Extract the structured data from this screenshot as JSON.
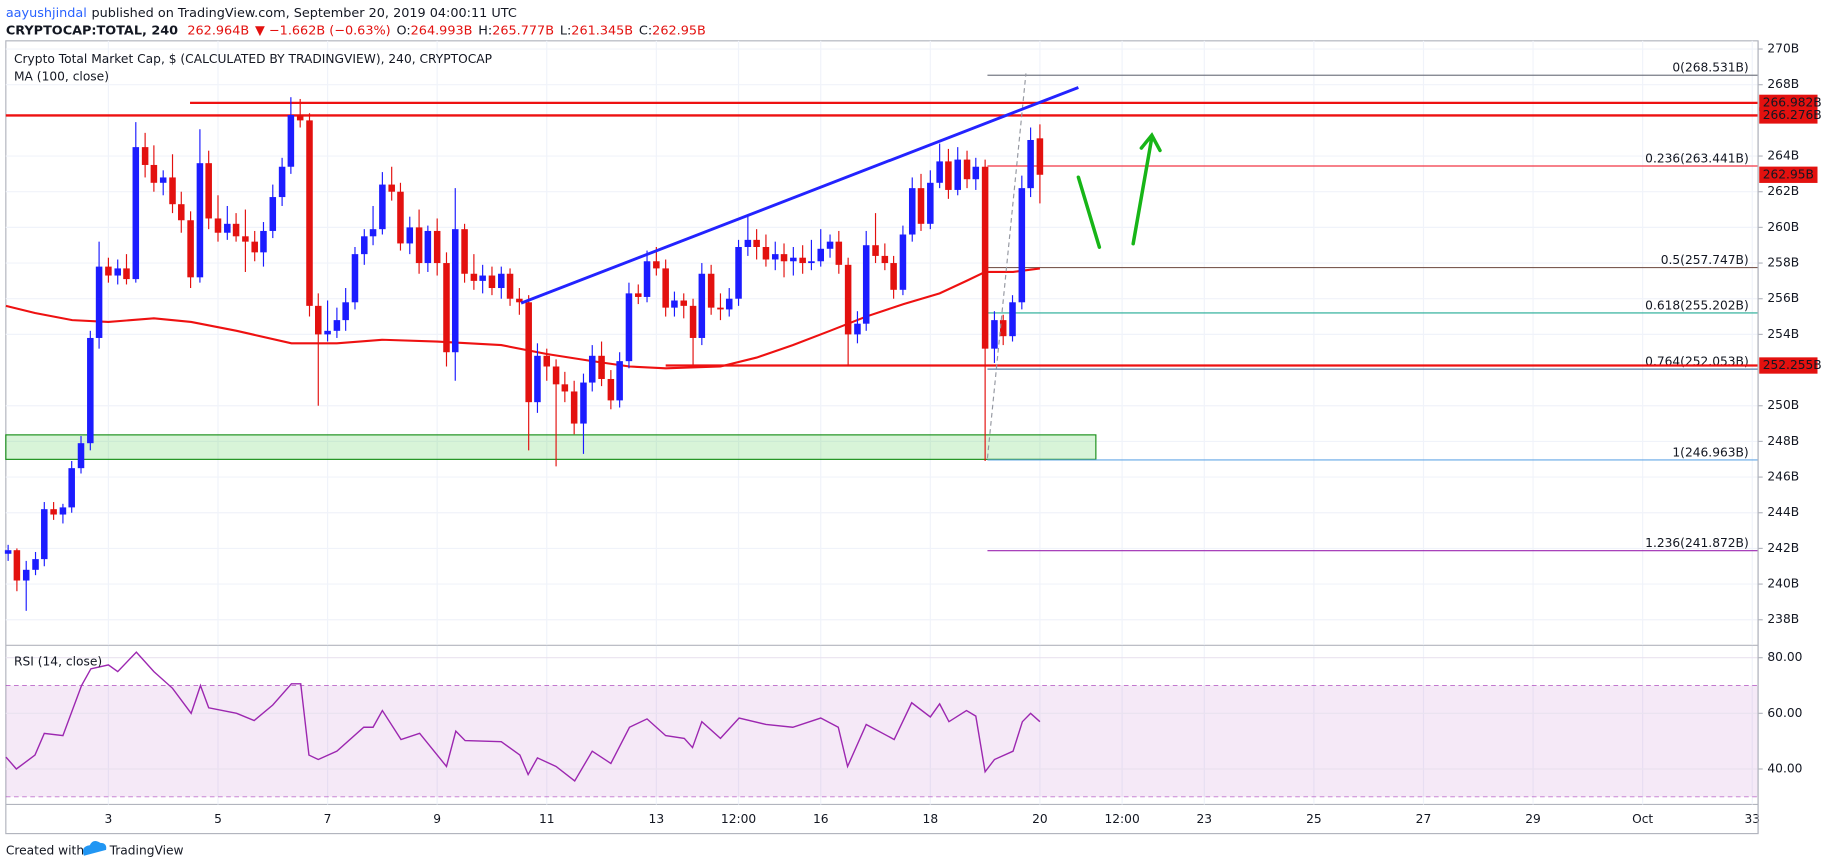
{
  "header": {
    "author": "aayushjindal",
    "published": "published on TradingView.com, September 20, 2019 04:00:11 UTC",
    "symbol": "CRYPTOCAP:TOTAL, 240",
    "last": "262.964B",
    "change": "▼ −1.662B (−0.63%)",
    "ohlc": [
      {
        "key": "O:",
        "value": "264.993B"
      },
      {
        "key": "H:",
        "value": "265.777B"
      },
      {
        "key": "L:",
        "value": "261.345B"
      },
      {
        "key": "C:",
        "value": "262.95B"
      }
    ]
  },
  "footer": {
    "created": "Created with",
    "brand": "TradingView"
  },
  "chart_data": {
    "type": "candlestick",
    "title": "Crypto Total Market Cap, $ (CALCULATED BY TRADINGVIEW), 240, CRYPTOCAP",
    "up_color": "#1c1cff",
    "down_color": "#e3110f",
    "x": [
      1.17,
      1.33,
      1.5,
      1.67,
      1.83,
      2,
      2.17,
      2.33,
      2.5,
      2.67,
      2.83,
      3,
      3.17,
      3.33,
      3.5,
      3.67,
      3.83,
      4,
      4.17,
      4.33,
      4.5,
      4.67,
      4.83,
      5,
      5.17,
      5.33,
      5.5,
      5.67,
      5.83,
      6,
      6.17,
      6.33,
      6.5,
      6.67,
      6.83,
      7,
      7.17,
      7.33,
      7.5,
      7.67,
      7.83,
      8,
      8.17,
      8.33,
      8.5,
      8.67,
      8.83,
      9,
      9.17,
      9.33,
      9.5,
      9.67,
      9.83,
      10,
      10.17,
      10.33,
      10.5,
      10.67,
      10.83,
      11,
      11.17,
      11.33,
      11.5,
      11.67,
      11.83,
      12,
      12.17,
      12.33,
      12.5,
      12.67,
      12.83,
      13,
      13.17,
      13.33,
      13.5,
      13.67,
      13.83,
      14,
      14.17,
      14.33,
      14.5,
      14.67,
      14.83,
      15,
      15.17,
      15.33,
      15.5,
      15.67,
      15.83,
      16,
      16.17,
      16.33,
      16.5,
      16.67,
      16.83,
      17,
      17.17,
      17.33,
      17.5,
      17.67,
      17.83,
      18,
      18.17,
      18.33,
      18.5,
      18.67,
      18.83,
      19,
      19.17,
      19.33,
      19.5,
      19.67,
      19.83,
      20
    ],
    "ohlc": [
      [
        241.7,
        242.2,
        241.3,
        241.9
      ],
      [
        241.9,
        242.0,
        239.6,
        240.2
      ],
      [
        240.2,
        241.3,
        238.5,
        240.8
      ],
      [
        240.8,
        241.8,
        240.5,
        241.4
      ],
      [
        241.4,
        244.6,
        241.0,
        244.2
      ],
      [
        244.2,
        244.6,
        243.6,
        243.9
      ],
      [
        243.9,
        244.5,
        243.4,
        244.3
      ],
      [
        244.3,
        246.9,
        244.0,
        246.5
      ],
      [
        246.5,
        248.3,
        246.2,
        247.9
      ],
      [
        247.9,
        254.2,
        247.5,
        253.8
      ],
      [
        253.8,
        259.2,
        253.2,
        257.8
      ],
      [
        257.8,
        258.3,
        256.9,
        257.3
      ],
      [
        257.3,
        258.2,
        256.8,
        257.7
      ],
      [
        257.7,
        258.5,
        256.8,
        257.1
      ],
      [
        257.1,
        265.9,
        256.9,
        264.5
      ],
      [
        264.5,
        265.3,
        262.8,
        263.5
      ],
      [
        263.5,
        264.6,
        262.0,
        262.5
      ],
      [
        262.5,
        263.2,
        261.8,
        262.8
      ],
      [
        262.8,
        264.1,
        260.8,
        261.3
      ],
      [
        261.3,
        262.0,
        259.7,
        260.4
      ],
      [
        260.4,
        260.9,
        256.6,
        257.2
      ],
      [
        257.2,
        265.5,
        256.9,
        263.6
      ],
      [
        263.6,
        264.3,
        259.9,
        260.5
      ],
      [
        260.5,
        261.8,
        259.2,
        259.7
      ],
      [
        259.7,
        261.2,
        259.3,
        260.2
      ],
      [
        260.2,
        260.8,
        259.2,
        259.5
      ],
      [
        259.5,
        261.0,
        257.5,
        259.2
      ],
      [
        259.2,
        259.8,
        258.1,
        258.6
      ],
      [
        258.6,
        260.3,
        257.8,
        259.8
      ],
      [
        259.8,
        262.4,
        259.4,
        261.7
      ],
      [
        261.7,
        263.9,
        261.2,
        263.4
      ],
      [
        263.4,
        267.3,
        263.0,
        266.3
      ],
      [
        266.3,
        267.2,
        265.6,
        266.0
      ],
      [
        266.0,
        266.4,
        255.0,
        255.6
      ],
      [
        255.6,
        256.3,
        250.0,
        254.0
      ],
      [
        254.0,
        255.9,
        253.6,
        254.2
      ],
      [
        254.2,
        255.5,
        253.8,
        254.8
      ],
      [
        254.8,
        256.6,
        254.2,
        255.8
      ],
      [
        255.8,
        258.9,
        255.4,
        258.5
      ],
      [
        258.5,
        259.9,
        257.9,
        259.5
      ],
      [
        259.5,
        261.2,
        259.0,
        259.9
      ],
      [
        259.9,
        263.1,
        259.6,
        262.4
      ],
      [
        262.4,
        263.4,
        261.5,
        262.0
      ],
      [
        262.0,
        262.5,
        258.7,
        259.1
      ],
      [
        259.1,
        260.6,
        258.5,
        260.0
      ],
      [
        260.0,
        261.0,
        257.4,
        258.0
      ],
      [
        258.0,
        260.1,
        257.5,
        259.8
      ],
      [
        259.8,
        260.5,
        257.3,
        258.0
      ],
      [
        258.0,
        258.6,
        252.2,
        253.0
      ],
      [
        253.0,
        262.2,
        251.4,
        259.9
      ],
      [
        259.9,
        260.2,
        256.9,
        257.4
      ],
      [
        257.4,
        258.5,
        256.5,
        257.0
      ],
      [
        257.0,
        257.9,
        256.3,
        257.3
      ],
      [
        257.3,
        257.8,
        256.2,
        256.6
      ],
      [
        256.6,
        257.8,
        256.0,
        257.4
      ],
      [
        257.4,
        257.7,
        255.6,
        256.0
      ],
      [
        256.0,
        256.6,
        255.1,
        255.8
      ],
      [
        255.8,
        256.2,
        247.5,
        250.2
      ],
      [
        250.2,
        253.5,
        249.6,
        252.8
      ],
      [
        252.8,
        253.2,
        251.4,
        252.2
      ],
      [
        252.2,
        252.6,
        246.6,
        251.2
      ],
      [
        251.2,
        251.9,
        250.2,
        250.8
      ],
      [
        250.8,
        251.4,
        248.4,
        249.0
      ],
      [
        249.0,
        251.8,
        247.3,
        251.3
      ],
      [
        251.3,
        253.4,
        250.8,
        252.8
      ],
      [
        252.8,
        253.6,
        251.1,
        251.5
      ],
      [
        251.5,
        252.0,
        249.8,
        250.3
      ],
      [
        250.3,
        253.0,
        249.9,
        252.5
      ],
      [
        252.5,
        256.9,
        252.1,
        256.3
      ],
      [
        256.3,
        256.8,
        255.7,
        256.1
      ],
      [
        256.1,
        258.7,
        255.8,
        258.1
      ],
      [
        258.1,
        258.9,
        257.3,
        257.7
      ],
      [
        257.7,
        258.2,
        255.0,
        255.5
      ],
      [
        255.5,
        256.4,
        255.0,
        255.9
      ],
      [
        255.9,
        256.3,
        254.9,
        255.6
      ],
      [
        255.6,
        256.0,
        252.3,
        253.8
      ],
      [
        253.8,
        258.0,
        253.4,
        257.4
      ],
      [
        257.4,
        257.9,
        255.1,
        255.5
      ],
      [
        255.5,
        256.3,
        254.8,
        255.4
      ],
      [
        255.4,
        256.6,
        255.0,
        256.0
      ],
      [
        256.0,
        259.3,
        255.6,
        258.9
      ],
      [
        258.9,
        260.7,
        258.4,
        259.3
      ],
      [
        259.3,
        259.9,
        258.2,
        258.9
      ],
      [
        258.9,
        259.6,
        257.8,
        258.2
      ],
      [
        258.2,
        259.2,
        257.6,
        258.5
      ],
      [
        258.5,
        259.1,
        257.2,
        258.1
      ],
      [
        258.1,
        258.9,
        257.3,
        258.3
      ],
      [
        258.3,
        259.0,
        257.4,
        258.0
      ],
      [
        258.0,
        259.3,
        257.6,
        258.1
      ],
      [
        258.1,
        259.9,
        257.8,
        258.8
      ],
      [
        258.8,
        259.6,
        258.3,
        259.2
      ],
      [
        259.2,
        259.8,
        257.4,
        257.9
      ],
      [
        257.9,
        258.3,
        252.2,
        254.0
      ],
      [
        254.0,
        255.3,
        253.5,
        254.6
      ],
      [
        254.6,
        259.8,
        254.2,
        259.0
      ],
      [
        259.0,
        260.8,
        258.0,
        258.4
      ],
      [
        258.4,
        259.1,
        257.6,
        258.0
      ],
      [
        258.0,
        258.4,
        256.0,
        256.5
      ],
      [
        256.5,
        260.1,
        256.2,
        259.6
      ],
      [
        259.6,
        262.8,
        259.2,
        262.2
      ],
      [
        262.2,
        263.0,
        259.8,
        260.2
      ],
      [
        260.2,
        263.2,
        259.9,
        262.5
      ],
      [
        262.5,
        264.7,
        262.2,
        263.7
      ],
      [
        263.7,
        264.4,
        261.6,
        262.1
      ],
      [
        262.1,
        264.5,
        261.8,
        263.8
      ],
      [
        263.8,
        264.3,
        262.2,
        262.7
      ],
      [
        262.7,
        263.9,
        262.1,
        263.4
      ],
      [
        263.4,
        263.8,
        246.9,
        253.2
      ],
      [
        253.2,
        255.3,
        252.4,
        254.8
      ],
      [
        254.8,
        255.1,
        253.4,
        253.9
      ],
      [
        253.9,
        256.2,
        253.6,
        255.8
      ],
      [
        255.8,
        262.9,
        255.4,
        262.2
      ],
      [
        262.2,
        265.6,
        261.7,
        264.9
      ],
      [
        264.993,
        265.777,
        261.345,
        262.95
      ]
    ],
    "xlim": [
      1.128,
      33.106
    ],
    "ylim": [
      236.6,
      270.46
    ],
    "xticks": [
      3,
      5,
      7,
      9,
      11,
      13,
      {
        "value": 14.5,
        "label": "12:00"
      },
      16,
      18,
      20,
      {
        "value": 21.5,
        "label": "12:00"
      },
      23,
      25,
      27,
      29,
      {
        "value": 31,
        "label": "Oct"
      },
      33
    ],
    "yticks": [
      {
        "value": 238,
        "label": "238B"
      },
      {
        "value": 240,
        "label": "240B"
      },
      {
        "value": 242,
        "label": "242B"
      },
      {
        "value": 244,
        "label": "244B"
      },
      {
        "value": 246,
        "label": "246B"
      },
      {
        "value": 248,
        "label": "248B"
      },
      {
        "value": 250,
        "label": "250B"
      },
      {
        "value": 254,
        "label": "254B"
      },
      {
        "value": 256,
        "label": "256B"
      },
      {
        "value": 258,
        "label": "258B"
      },
      {
        "value": 260,
        "label": "260B"
      },
      {
        "value": 262,
        "label": "262B"
      },
      {
        "value": 264,
        "label": "264B"
      },
      {
        "value": 268,
        "label": "268B"
      },
      {
        "value": 270,
        "label": "270B"
      }
    ],
    "grid": true,
    "moving_average": {
      "name": "MA (100, close)",
      "color": "#ee1111",
      "x": [
        1.13,
        1.66,
        2.34,
        3,
        3.83,
        4.51,
        5.34,
        6.34,
        7.17,
        8,
        9,
        10.17,
        11,
        11.83,
        12.51,
        13.17,
        14.17,
        14.83,
        15.49,
        16.17,
        16.83,
        17.51,
        18.17,
        18.66,
        19,
        19.51,
        20
      ],
      "values": [
        255.6,
        255.2,
        254.8,
        254.7,
        254.9,
        254.7,
        254.2,
        253.5,
        253.5,
        253.7,
        253.6,
        253.4,
        252.9,
        252.5,
        252.2,
        252.1,
        252.2,
        252.7,
        253.4,
        254.2,
        255.0,
        255.7,
        256.3,
        257.0,
        257.5,
        257.5,
        257.7
      ]
    },
    "price_labels": [
      {
        "value": 266.982,
        "label": "266.982B"
      },
      {
        "value": 266.276,
        "label": "266.276B"
      },
      {
        "value": 262.95,
        "label": "262.95B"
      },
      {
        "value": 252.255,
        "label": "252.255B"
      }
    ],
    "fib_levels": [
      {
        "ratio": 0,
        "value": 268.531,
        "label": "0(268.531B)",
        "color": "#787b86"
      },
      {
        "ratio": 0.236,
        "value": 263.441,
        "label": "0.236(263.441B)",
        "color": "#f23645"
      },
      {
        "ratio": 0.5,
        "value": 257.747,
        "label": "0.5(257.747B)",
        "color": "#7b5b52"
      },
      {
        "ratio": 0.618,
        "value": 255.202,
        "label": "0.618(255.202B)",
        "color": "#22ab94"
      },
      {
        "ratio": 0.764,
        "value": 252.053,
        "label": "0.764(252.053B)",
        "color": "#5b7fa8"
      },
      {
        "ratio": 1,
        "value": 246.963,
        "label": "1(246.963B)",
        "color": "#64a8e6"
      },
      {
        "ratio": 1.236,
        "value": 241.872,
        "label": "1.236(241.872B)",
        "color": "#9c27b0"
      }
    ],
    "rsi": {
      "name": "RSI (14, close)",
      "color": "#9c27b0",
      "x": [
        1.13,
        1.32,
        1.66,
        1.83,
        2.17,
        2.34,
        2.51,
        2.68,
        3,
        3.17,
        3.51,
        3.83,
        4.17,
        4.51,
        4.68,
        4.83,
        5.34,
        5.66,
        6,
        6.34,
        6.51,
        6.66,
        6.83,
        7.17,
        7.66,
        7.83,
        8,
        8.34,
        8.68,
        9.17,
        9.34,
        9.51,
        10.17,
        10.51,
        10.66,
        10.83,
        11.17,
        11.51,
        11.83,
        12.17,
        12.51,
        12.83,
        13.17,
        13.51,
        13.66,
        13.83,
        14.17,
        14.51,
        15,
        15.49,
        16,
        16.32,
        16.49,
        16.83,
        17.34,
        17.66,
        18,
        18.17,
        18.34,
        18.66,
        18.83,
        19,
        19.17,
        19.51,
        19.68,
        19.83,
        20
      ],
      "values": [
        44.3,
        40,
        45,
        52.8,
        52,
        61,
        70,
        76,
        77.4,
        75,
        82,
        75,
        69,
        60,
        70,
        62,
        60,
        57.4,
        63,
        70.6,
        70.6,
        45,
        43.4,
        46.4,
        55,
        55,
        61,
        50.6,
        52.8,
        40.9,
        53.6,
        50.2,
        49.8,
        45,
        38,
        44,
        40.9,
        35.7,
        46.4,
        42,
        55,
        58,
        52,
        51,
        47.7,
        57,
        51,
        58.3,
        56,
        55,
        58.3,
        55,
        40.9,
        56,
        50.6,
        63.8,
        58.7,
        63.4,
        57,
        61,
        59,
        39,
        43.4,
        46.4,
        57,
        60,
        57
      ],
      "ylim": [
        28.1,
        83.4
      ],
      "yticks": [
        {
          "value": 40,
          "label": "40.00"
        },
        {
          "value": 60,
          "label": "60.00"
        },
        {
          "value": 80,
          "label": "80.00"
        }
      ],
      "band": [
        30,
        70
      ]
    }
  }
}
